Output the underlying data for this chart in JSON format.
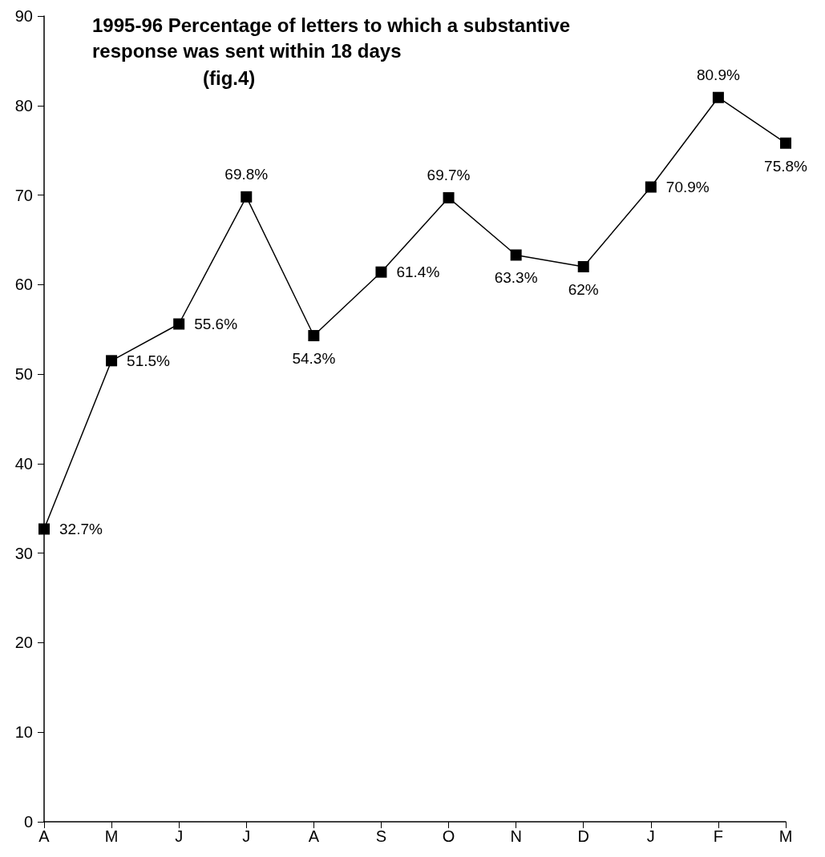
{
  "chart_data": {
    "type": "line",
    "title": "1995-96 Percentage of letters to which a substantive response was sent within 18 days",
    "subtitle": "(fig.4)",
    "categories": [
      "A",
      "M",
      "J",
      "J",
      "A",
      "S",
      "O",
      "N",
      "D",
      "J",
      "F",
      "M"
    ],
    "series": [
      {
        "color": "#000000",
        "values": [
          32.7,
          51.5,
          55.6,
          69.8,
          54.3,
          61.4,
          69.7,
          63.3,
          62,
          70.9,
          80.9,
          75.8
        ],
        "value_labels": [
          "32.7%",
          "51.5%",
          "55.6%",
          "69.8%",
          "54.3%",
          "61.4%",
          "69.7%",
          "63.3%",
          "62%",
          "70.9%",
          "80.9%",
          "75.8%"
        ]
      }
    ],
    "ylim": [
      0,
      90
    ],
    "yticks": [
      0,
      10,
      20,
      30,
      40,
      50,
      60,
      70,
      80,
      90
    ],
    "grid": false,
    "marker": "square",
    "line_style": "solid"
  }
}
